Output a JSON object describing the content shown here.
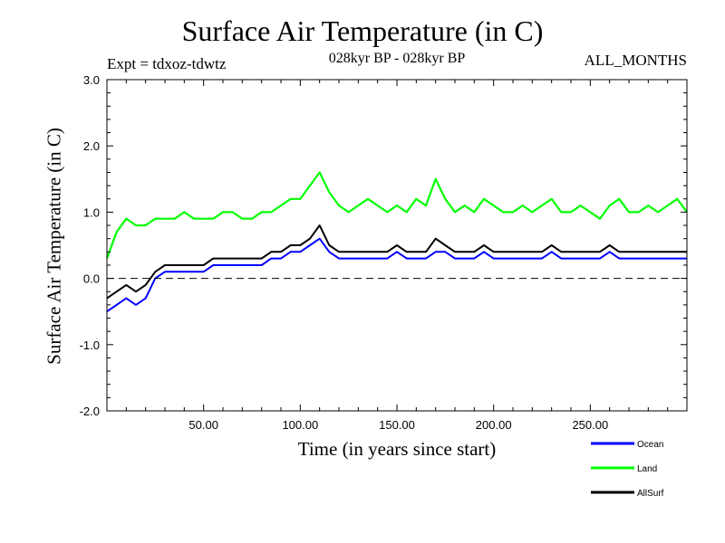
{
  "chart_data": {
    "type": "line",
    "title": "Surface Air Temperature (in C)",
    "subtitle": "028kyr BP - 028kyr BP",
    "annotation_left": "Expt = tdxoz-tdwtz",
    "annotation_right": "ALL_MONTHS",
    "xlabel": "Time (in years since start)",
    "ylabel": "Surface Air Temperature (in C)",
    "xlim": [
      0,
      300
    ],
    "ylim": [
      -2.0,
      3.0
    ],
    "x_ticks": [
      50,
      100,
      150,
      200,
      250
    ],
    "x_tick_labels": [
      "50.00",
      "100.00",
      "150.00",
      "200.00",
      "250.00"
    ],
    "y_ticks": [
      -2.0,
      -1.0,
      0.0,
      1.0,
      2.0,
      3.0
    ],
    "y_tick_labels": [
      "-2.0",
      "-1.0",
      "0.0",
      "1.0",
      "2.0",
      "3.0"
    ],
    "reference_line": 0.0,
    "legend_position": "bottom-right",
    "series": [
      {
        "name": "Land",
        "color": "#00ff00",
        "x": [
          0,
          5,
          10,
          15,
          20,
          25,
          30,
          35,
          40,
          45,
          50,
          55,
          60,
          65,
          70,
          75,
          80,
          85,
          90,
          95,
          100,
          105,
          110,
          115,
          120,
          125,
          130,
          135,
          140,
          145,
          150,
          155,
          160,
          165,
          170,
          175,
          180,
          185,
          190,
          195,
          200,
          205,
          210,
          215,
          220,
          225,
          230,
          235,
          240,
          245,
          250,
          255,
          260,
          265,
          270,
          275,
          280,
          285,
          290,
          295,
          300
        ],
        "values": [
          0.3,
          0.7,
          0.9,
          0.8,
          0.8,
          0.9,
          0.9,
          0.9,
          1.0,
          0.9,
          0.9,
          0.9,
          1.0,
          1.0,
          0.9,
          0.9,
          1.0,
          1.0,
          1.1,
          1.2,
          1.2,
          1.4,
          1.6,
          1.3,
          1.1,
          1.0,
          1.1,
          1.2,
          1.1,
          1.0,
          1.1,
          1.0,
          1.2,
          1.1,
          1.5,
          1.2,
          1.0,
          1.1,
          1.0,
          1.2,
          1.1,
          1.0,
          1.0,
          1.1,
          1.0,
          1.1,
          1.2,
          1.0,
          1.0,
          1.1,
          1.0,
          0.9,
          1.1,
          1.2,
          1.0,
          1.0,
          1.1,
          1.0,
          1.1,
          1.2,
          1.0
        ]
      },
      {
        "name": "Ocean",
        "color": "#0000ff",
        "x": [
          0,
          5,
          10,
          15,
          20,
          25,
          30,
          35,
          40,
          45,
          50,
          55,
          60,
          65,
          70,
          75,
          80,
          85,
          90,
          95,
          100,
          105,
          110,
          115,
          120,
          125,
          130,
          135,
          140,
          145,
          150,
          155,
          160,
          165,
          170,
          175,
          180,
          185,
          190,
          195,
          200,
          205,
          210,
          215,
          220,
          225,
          230,
          235,
          240,
          245,
          250,
          255,
          260,
          265,
          270,
          275,
          280,
          285,
          290,
          295,
          300
        ],
        "values": [
          -0.5,
          -0.4,
          -0.3,
          -0.4,
          -0.3,
          0.0,
          0.1,
          0.1,
          0.1,
          0.1,
          0.1,
          0.2,
          0.2,
          0.2,
          0.2,
          0.2,
          0.2,
          0.3,
          0.3,
          0.4,
          0.4,
          0.5,
          0.6,
          0.4,
          0.3,
          0.3,
          0.3,
          0.3,
          0.3,
          0.3,
          0.4,
          0.3,
          0.3,
          0.3,
          0.4,
          0.4,
          0.3,
          0.3,
          0.3,
          0.4,
          0.3,
          0.3,
          0.3,
          0.3,
          0.3,
          0.3,
          0.4,
          0.3,
          0.3,
          0.3,
          0.3,
          0.3,
          0.4,
          0.3,
          0.3,
          0.3,
          0.3,
          0.3,
          0.3,
          0.3,
          0.3
        ]
      },
      {
        "name": "AllSurf",
        "color": "#000000",
        "x": [
          0,
          5,
          10,
          15,
          20,
          25,
          30,
          35,
          40,
          45,
          50,
          55,
          60,
          65,
          70,
          75,
          80,
          85,
          90,
          95,
          100,
          105,
          110,
          115,
          120,
          125,
          130,
          135,
          140,
          145,
          150,
          155,
          160,
          165,
          170,
          175,
          180,
          185,
          190,
          195,
          200,
          205,
          210,
          215,
          220,
          225,
          230,
          235,
          240,
          245,
          250,
          255,
          260,
          265,
          270,
          275,
          280,
          285,
          290,
          295,
          300
        ],
        "values": [
          -0.3,
          -0.2,
          -0.1,
          -0.2,
          -0.1,
          0.1,
          0.2,
          0.2,
          0.2,
          0.2,
          0.2,
          0.3,
          0.3,
          0.3,
          0.3,
          0.3,
          0.3,
          0.4,
          0.4,
          0.5,
          0.5,
          0.6,
          0.8,
          0.5,
          0.4,
          0.4,
          0.4,
          0.4,
          0.4,
          0.4,
          0.5,
          0.4,
          0.4,
          0.4,
          0.6,
          0.5,
          0.4,
          0.4,
          0.4,
          0.5,
          0.4,
          0.4,
          0.4,
          0.4,
          0.4,
          0.4,
          0.5,
          0.4,
          0.4,
          0.4,
          0.4,
          0.4,
          0.5,
          0.4,
          0.4,
          0.4,
          0.4,
          0.4,
          0.4,
          0.4,
          0.4
        ]
      }
    ]
  }
}
